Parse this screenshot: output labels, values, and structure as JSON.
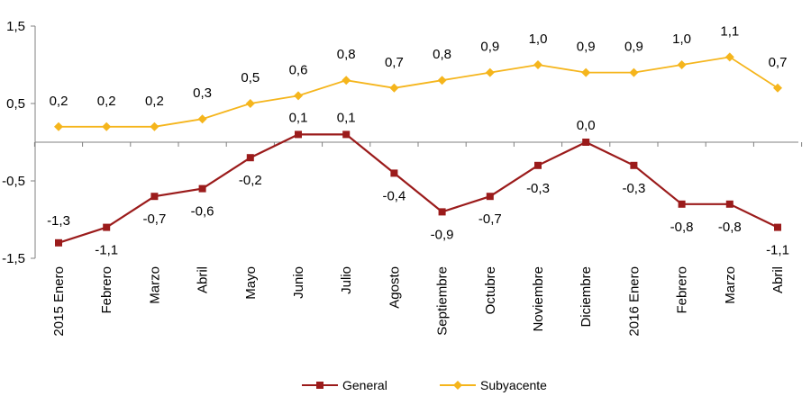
{
  "chart_data": {
    "type": "line",
    "categories": [
      "2015 Enero",
      "Febrero",
      "Marzo",
      "Abril",
      "Mayo",
      "Junio",
      "Julio",
      "Agosto",
      "Septiembre",
      "Octubre",
      "Noviembre",
      "Diciembre",
      "2016 Enero",
      "Febrero",
      "Marzo",
      "Abril"
    ],
    "series": [
      {
        "name": "General",
        "color": "#9b1b1b",
        "marker": "square",
        "values": [
          -1.3,
          -1.1,
          -0.7,
          -0.6,
          -0.2,
          0.1,
          0.1,
          -0.4,
          -0.9,
          -0.7,
          -0.3,
          0.0,
          -0.3,
          -0.8,
          -0.8,
          -1.1
        ],
        "labels": [
          "-1,3",
          "-1,1",
          "-0,7",
          "-0,6",
          "-0,2",
          "0,1",
          "0,1",
          "-0,4",
          "-0,9",
          "-0,7",
          "-0,3",
          "0,0",
          "-0,3",
          "-0,8",
          "-0,8",
          "-1,1"
        ]
      },
      {
        "name": "Subyacente",
        "color": "#f5b51c",
        "marker": "diamond",
        "values": [
          0.2,
          0.2,
          0.2,
          0.3,
          0.5,
          0.6,
          0.8,
          0.7,
          0.8,
          0.9,
          1.0,
          0.9,
          0.9,
          1.0,
          1.1,
          0.7
        ],
        "labels": [
          "0,2",
          "0,2",
          "0,2",
          "0,3",
          "0,5",
          "0,6",
          "0,8",
          "0,7",
          "0,8",
          "0,9",
          "1,0",
          "0,9",
          "0,9",
          "1,0",
          "1,1",
          "0,7"
        ]
      }
    ],
    "yticks": [
      1.5,
      0.5,
      -0.5,
      -1.5
    ],
    "ytick_labels": [
      "1,5",
      "0,5",
      "-0,5",
      "-1,5"
    ],
    "ylim": [
      -1.5,
      1.5
    ],
    "grid": false,
    "legend_position": "bottom"
  }
}
